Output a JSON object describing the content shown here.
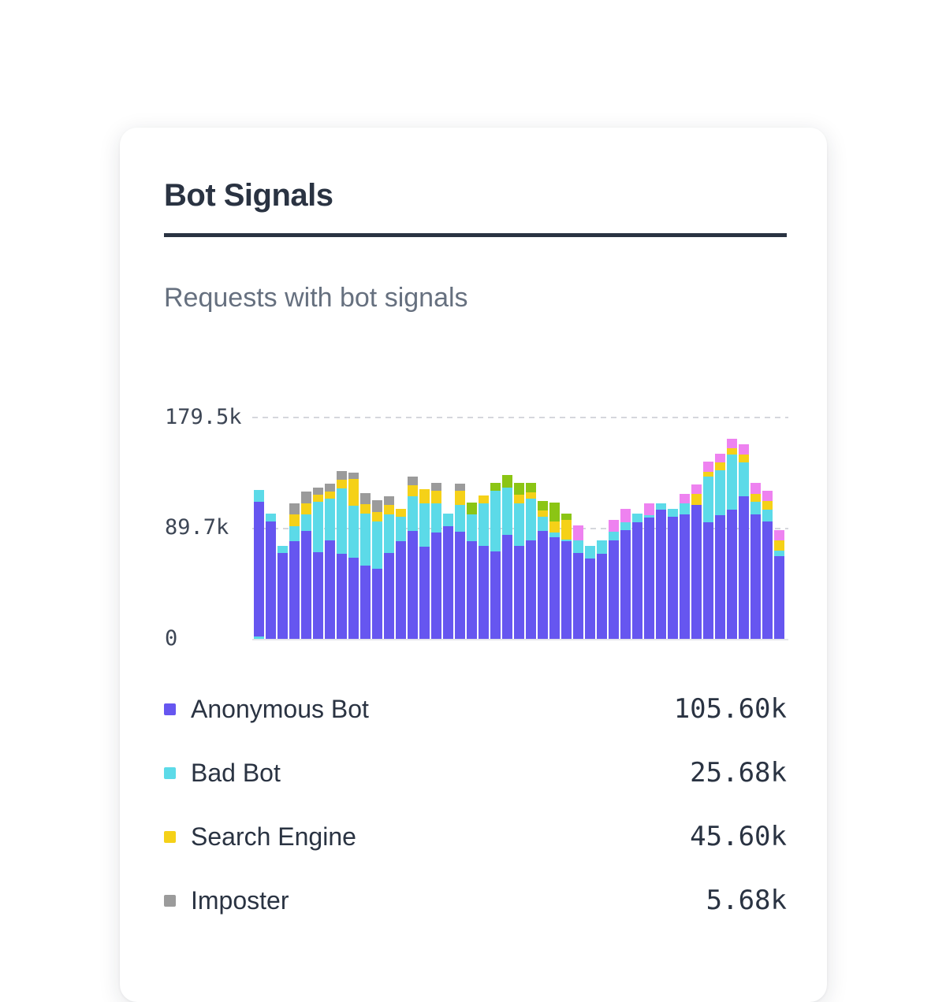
{
  "card": {
    "title": "Bot Signals",
    "subtitle": "Requests with bot signals"
  },
  "chart_data": {
    "type": "bar",
    "variant": "stacked-vertical",
    "title": "Requests with bot signals",
    "xlabel": "",
    "ylabel": "",
    "unit": "thousands of requests (k)",
    "ylim": [
      0,
      179.5
    ],
    "grid": "dashed horizontal gridlines at 89.7k and 179.5k, solid light baseline at 0",
    "x_tick_labels_visible": false,
    "y_ticks": [
      {
        "label": "179.5k",
        "value": 179.5
      },
      {
        "label": "89.7k",
        "value": 89.7
      },
      {
        "label": "0",
        "value": 0
      }
    ],
    "colors": {
      "anonymous": "#6656F0",
      "bad": "#5CDAE8",
      "search": "#F5D118",
      "imposter": "#9B9B9B",
      "green": "#8BC514",
      "pink": "#EE82F0"
    },
    "series_note": "each bar is a list of [segment-color-key, value-in-k] from bottom to top; green and pink segment legend labels are not visible in the screenshot",
    "bars": [
      [
        [
          "bad",
          1.7
        ],
        [
          "anonymous",
          108.8
        ],
        [
          "bad",
          9.9
        ]
      ],
      [
        [
          "anonymous",
          94.6
        ],
        [
          "bad",
          6.7
        ]
      ],
      [
        [
          "anonymous",
          69.6
        ],
        [
          "bad",
          5.7
        ]
      ],
      [
        [
          "anonymous",
          79.1
        ],
        [
          "bad",
          11.7
        ],
        [
          "search",
          9.5
        ],
        [
          "imposter",
          8.9
        ]
      ],
      [
        [
          "anonymous",
          87.2
        ],
        [
          "bad",
          13.2
        ],
        [
          "search",
          8.9
        ],
        [
          "imposter",
          9.7
        ]
      ],
      [
        [
          "anonymous",
          70.2
        ],
        [
          "bad",
          40.4
        ],
        [
          "search",
          5.7
        ],
        [
          "imposter",
          5.7
        ]
      ],
      [
        [
          "anonymous",
          79.6
        ],
        [
          "bad",
          33.9
        ],
        [
          "search",
          5.5
        ],
        [
          "imposter",
          6.4
        ]
      ],
      [
        [
          "anonymous",
          68.5
        ],
        [
          "bad",
          53.0
        ],
        [
          "search",
          7.4
        ],
        [
          "imposter",
          6.4
        ]
      ],
      [
        [
          "anonymous",
          65.4
        ],
        [
          "bad",
          42.4
        ],
        [
          "search",
          21.3
        ],
        [
          "imposter",
          5.3
        ]
      ],
      [
        [
          "anonymous",
          59.0
        ],
        [
          "bad",
          42.4
        ],
        [
          "search",
          7.4
        ],
        [
          "imposter",
          8.9
        ]
      ],
      [
        [
          "anonymous",
          56.8
        ],
        [
          "bad",
          37.8
        ],
        [
          "search",
          7.8
        ],
        [
          "imposter",
          9.5
        ]
      ],
      [
        [
          "anonymous",
          69.6
        ],
        [
          "bad",
          30.8
        ],
        [
          "search",
          8.0
        ],
        [
          "imposter",
          6.8
        ]
      ],
      [
        [
          "anonymous",
          78.7
        ],
        [
          "bad",
          19.9
        ],
        [
          "search",
          6.6
        ]
      ],
      [
        [
          "anonymous",
          87.2
        ],
        [
          "bad",
          28.0
        ],
        [
          "search",
          9.1
        ],
        [
          "imposter",
          6.8
        ]
      ],
      [
        [
          "anonymous",
          74.5
        ],
        [
          "bad",
          34.8
        ],
        [
          "search",
          11.8
        ]
      ],
      [
        [
          "anonymous",
          85.9
        ],
        [
          "bad",
          23.4
        ],
        [
          "search",
          10.6
        ],
        [
          "imposter",
          6.0
        ]
      ],
      [
        [
          "anonymous",
          90.8
        ],
        [
          "bad",
          10.6
        ]
      ],
      [
        [
          "anonymous",
          86.6
        ],
        [
          "bad",
          21.8
        ],
        [
          "search",
          11.5
        ],
        [
          "imposter",
          5.5
        ]
      ],
      [
        [
          "anonymous",
          78.7
        ],
        [
          "bad",
          22.0
        ],
        [
          "green",
          9.2
        ]
      ],
      [
        [
          "anonymous",
          74.9
        ],
        [
          "bad",
          34.4
        ],
        [
          "search",
          6.4
        ]
      ],
      [
        [
          "anonymous",
          70.6
        ],
        [
          "bad",
          49.2
        ],
        [
          "green",
          6.0
        ]
      ],
      [
        [
          "anonymous",
          83.8
        ],
        [
          "bad",
          38.2
        ],
        [
          "green",
          10.2
        ]
      ],
      [
        [
          "anonymous",
          75.3
        ],
        [
          "bad",
          34.0
        ],
        [
          "search",
          7.0
        ],
        [
          "green",
          9.9
        ]
      ],
      [
        [
          "anonymous",
          79.6
        ],
        [
          "bad",
          33.5
        ],
        [
          "search",
          5.3
        ],
        [
          "green",
          7.8
        ]
      ],
      [
        [
          "anonymous",
          87.2
        ],
        [
          "bad",
          11.5
        ],
        [
          "search",
          4.9
        ],
        [
          "green",
          7.8
        ]
      ],
      [
        [
          "anonymous",
          82.3
        ],
        [
          "bad",
          3.6
        ],
        [
          "search",
          9.1
        ],
        [
          "green",
          14.9
        ]
      ],
      [
        [
          "anonymous",
          78.7
        ],
        [
          "bad",
          1.5
        ],
        [
          "search",
          15.9
        ],
        [
          "green",
          5.3
        ]
      ],
      [
        [
          "anonymous",
          69.6
        ],
        [
          "bad",
          10.0
        ],
        [
          "pink",
          11.9
        ]
      ],
      [
        [
          "anonymous",
          64.7
        ],
        [
          "bad",
          10.2
        ]
      ],
      [
        [
          "anonymous",
          68.5
        ],
        [
          "bad",
          11.0
        ]
      ],
      [
        [
          "anonymous",
          79.6
        ],
        [
          "bad",
          7.0
        ],
        [
          "pink",
          9.5
        ]
      ],
      [
        [
          "anonymous",
          88.0
        ],
        [
          "bad",
          6.0
        ],
        [
          "pink",
          11.0
        ]
      ],
      [
        [
          "anonymous",
          94.4
        ],
        [
          "bad",
          7.0
        ]
      ],
      [
        [
          "anonymous",
          98.2
        ],
        [
          "bad",
          1.7
        ],
        [
          "pink",
          9.4
        ]
      ],
      [
        [
          "anonymous",
          104.6
        ],
        [
          "bad",
          4.7
        ]
      ],
      [
        [
          "anonymous",
          98.7
        ],
        [
          "bad",
          6.4
        ]
      ],
      [
        [
          "anonymous",
          100.8
        ],
        [
          "bad",
          8.5
        ],
        [
          "pink",
          7.6
        ]
      ],
      [
        [
          "anonymous",
          108.4
        ],
        [
          "search",
          8.5
        ],
        [
          "pink",
          7.8
        ]
      ],
      [
        [
          "anonymous",
          94.4
        ],
        [
          "bad",
          36.7
        ],
        [
          "search",
          3.6
        ],
        [
          "pink",
          8.5
        ]
      ],
      [
        [
          "anonymous",
          99.9
        ],
        [
          "bad",
          36.5
        ],
        [
          "search",
          6.0
        ],
        [
          "pink",
          7.2
        ]
      ],
      [
        [
          "anonymous",
          104.6
        ],
        [
          "bad",
          44.6
        ],
        [
          "search",
          4.7
        ],
        [
          "pink",
          7.6
        ]
      ],
      [
        [
          "anonymous",
          115.2
        ],
        [
          "bad",
          27.2
        ],
        [
          "search",
          6.7
        ],
        [
          "pink",
          8.1
        ]
      ],
      [
        [
          "anonymous",
          100.8
        ],
        [
          "bad",
          9.8
        ],
        [
          "search",
          6.4
        ],
        [
          "pink",
          8.9
        ]
      ],
      [
        [
          "anonymous",
          95.0
        ],
        [
          "bad",
          9.5
        ],
        [
          "search",
          6.8
        ],
        [
          "pink",
          8.5
        ]
      ],
      [
        [
          "anonymous",
          66.8
        ],
        [
          "bad",
          4.3
        ],
        [
          "search",
          8.5
        ],
        [
          "pink",
          8.5
        ]
      ]
    ]
  },
  "legend": {
    "items": [
      {
        "label": "Anonymous Bot",
        "value": "105.60k",
        "color": "anonymous"
      },
      {
        "label": "Bad Bot",
        "value": "25.68k",
        "color": "bad"
      },
      {
        "label": "Search Engine",
        "value": "45.60k",
        "color": "search"
      },
      {
        "label": "Imposter",
        "value": "5.68k",
        "color": "imposter"
      }
    ]
  }
}
